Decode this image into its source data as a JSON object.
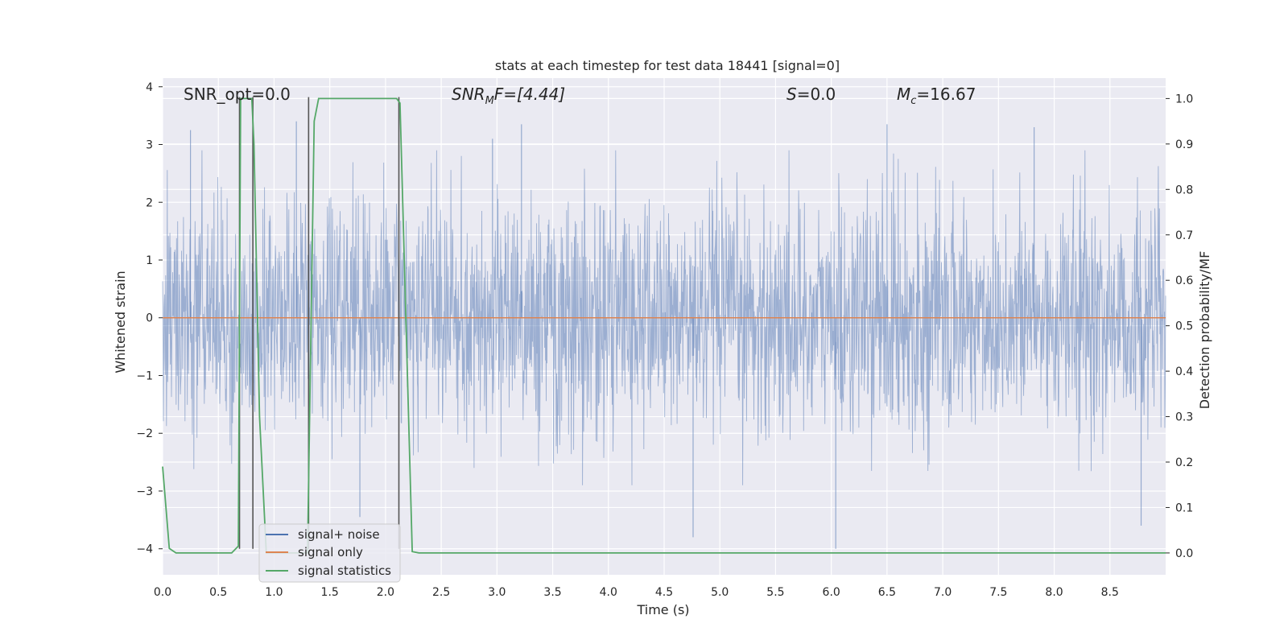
{
  "chart_data": {
    "type": "line",
    "title": "stats at each timestep for test data 18441 [signal=0]",
    "xlabel": "Time (s)",
    "ylabel": "Whitened strain",
    "ylabel_right": "Detection probability/MF",
    "xlim": [
      0.0,
      9.0
    ],
    "ylim": [
      -4.45,
      4.15
    ],
    "ylim_right": [
      -0.048,
      1.045
    ],
    "x_ticks": [
      "0.0",
      "0.5",
      "1.0",
      "1.5",
      "2.0",
      "2.5",
      "3.0",
      "3.5",
      "4.0",
      "4.5",
      "5.0",
      "5.5",
      "6.0",
      "6.5",
      "7.0",
      "7.5",
      "8.0",
      "8.5"
    ],
    "y_ticks": [
      "4",
      "3",
      "2",
      "1",
      "0",
      "−1",
      "−2",
      "−3",
      "−4"
    ],
    "y_ticks_right": [
      "1.0",
      "0.9",
      "0.8",
      "0.7",
      "0.6",
      "0.5",
      "0.4",
      "0.3",
      "0.2",
      "0.1",
      "0.0"
    ],
    "grid": true,
    "legend_position": "lower-left",
    "annotations": {
      "snr_opt": "SNR_opt=0.0",
      "snr_mf_symbol": "SNR",
      "snr_mf_sub": "M",
      "snr_mf_rest": "F=[4.44]",
      "s_symbol": "S",
      "s_value": "=0.0",
      "mc_symbol": "M",
      "mc_sub": "c",
      "mc_value": "=16.67"
    },
    "series": [
      {
        "name": "signal+ noise",
        "color": "#4c72b0",
        "description_of_distribution": "white noise, sigma ~1",
        "peak_spikes": [
          {
            "x": 0.25,
            "y": 3.25
          },
          {
            "x": 1.2,
            "y": 3.4
          },
          {
            "x": 2.96,
            "y": 3.1
          },
          {
            "x": 3.22,
            "y": 3.35
          },
          {
            "x": 6.5,
            "y": 3.35
          },
          {
            "x": 7.82,
            "y": 3.3
          },
          {
            "x": 4.76,
            "y": -3.8
          },
          {
            "x": 6.04,
            "y": -4.0
          },
          {
            "x": 1.77,
            "y": -3.45
          },
          {
            "x": 8.78,
            "y": -3.6
          }
        ]
      },
      {
        "name": "signal only",
        "color": "#dd8452",
        "x": [
          0.0,
          9.0
        ],
        "y": [
          0.0,
          0.0
        ]
      },
      {
        "name": "signal statistics",
        "color": "#55a868",
        "axis": "right",
        "x": [
          0.0,
          0.06,
          0.12,
          0.62,
          0.68,
          0.7,
          0.76,
          0.8,
          0.82,
          0.87,
          0.93,
          1.3,
          1.36,
          1.4,
          2.1,
          2.13,
          2.24,
          2.3,
          9.0
        ],
        "y": [
          0.19,
          0.01,
          0.0,
          0.0,
          0.015,
          1.0,
          1.0,
          1.0,
          0.9,
          0.3,
          0.0,
          0.0,
          0.95,
          1.0,
          1.0,
          0.99,
          0.003,
          0.0,
          0.0
        ]
      }
    ],
    "vertical_markers": [
      0.69,
      0.81,
      1.31,
      2.12
    ],
    "vertical_marker_color": "#555555"
  },
  "legend": {
    "items": [
      {
        "label": "signal+ noise",
        "color": "#4c72b0"
      },
      {
        "label": "signal only",
        "color": "#dd8452"
      },
      {
        "label": "signal statistics",
        "color": "#55a868"
      }
    ]
  },
  "colors": {
    "plot_background": "#eaeaf2",
    "grid": "#ffffff"
  }
}
